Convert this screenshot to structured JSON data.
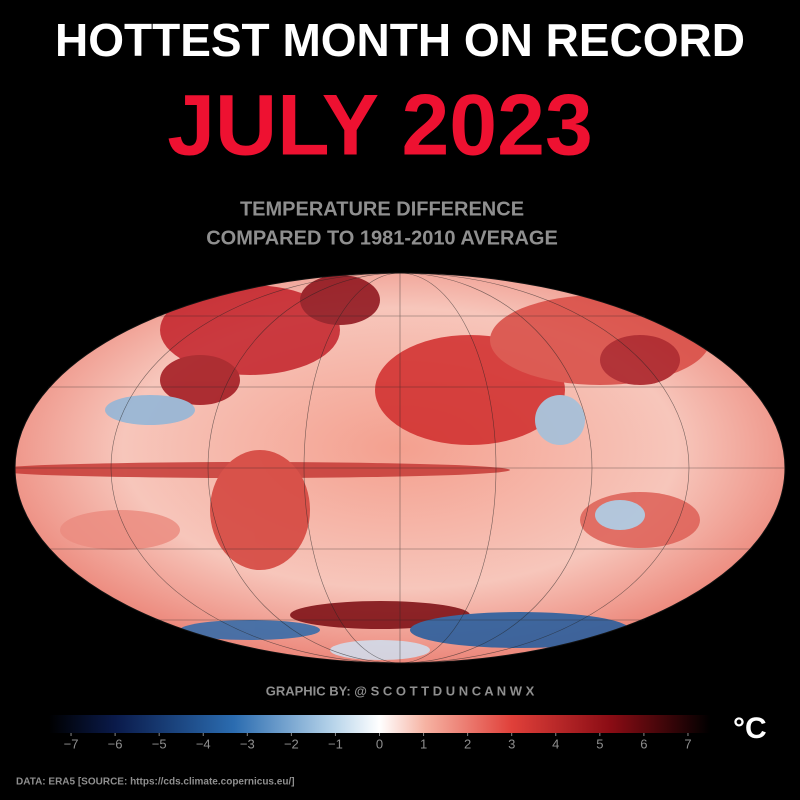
{
  "header": {
    "title": "HOTTEST MONTH ON RECORD",
    "month": "JULY 2023",
    "subtitle": [
      "TEMPERATURE DIFFERENCE",
      "COMPARED TO 1981-2010 AVERAGE"
    ]
  },
  "credit": "GRAPHIC BY: @ S C O T T D U N C A N W X",
  "colorbar": {
    "lim": [
      -7.5,
      7.5
    ],
    "ticks": [
      {
        "value": -7,
        "label": "−7"
      },
      {
        "value": -6,
        "label": "−6"
      },
      {
        "value": -5,
        "label": "−5"
      },
      {
        "value": -4,
        "label": "−4"
      },
      {
        "value": -3,
        "label": "−3"
      },
      {
        "value": -2,
        "label": "−2"
      },
      {
        "value": -1,
        "label": "−1"
      },
      0,
      1,
      2,
      3,
      4,
      5,
      6,
      7
    ],
    "unit": "°C"
  },
  "footer": {
    "source": "DATA: ERA5 [SOURCE: https://cds.climate.copernicus.eu/]"
  }
}
